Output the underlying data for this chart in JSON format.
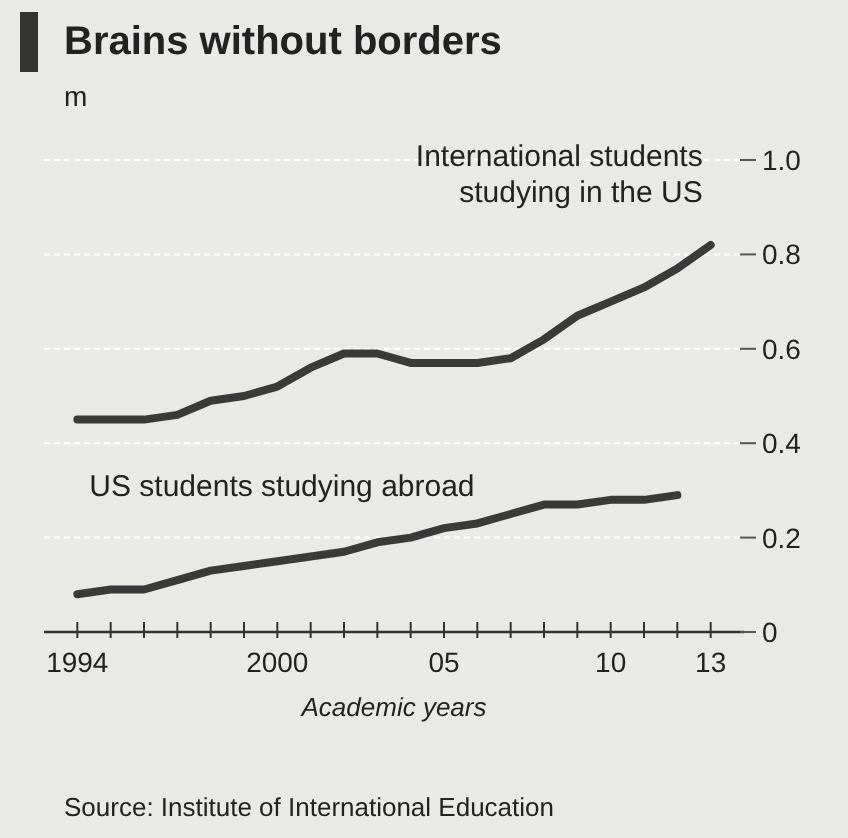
{
  "chart_data": {
    "type": "line",
    "title": "Brains without borders",
    "subtitle": "m",
    "xlabel": "Academic years",
    "annotations": [
      "Source: Institute of International Education"
    ],
    "marker": "none",
    "grid": "y",
    "xlim": [
      1993,
      2014
    ],
    "xticks": [
      {
        "value": 1994,
        "label": "1994"
      },
      {
        "value": 1995,
        "label": null
      },
      {
        "value": 1996,
        "label": null
      },
      {
        "value": 1997,
        "label": null
      },
      {
        "value": 1998,
        "label": null
      },
      {
        "value": 1999,
        "label": null
      },
      {
        "value": 2000,
        "label": "2000"
      },
      {
        "value": 2001,
        "label": null
      },
      {
        "value": 2002,
        "label": null
      },
      {
        "value": 2003,
        "label": null
      },
      {
        "value": 2004,
        "label": null
      },
      {
        "value": 2005,
        "label": "05"
      },
      {
        "value": 2006,
        "label": null
      },
      {
        "value": 2007,
        "label": null
      },
      {
        "value": 2008,
        "label": null
      },
      {
        "value": 2009,
        "label": null
      },
      {
        "value": 2010,
        "label": "10"
      },
      {
        "value": 2011,
        "label": null
      },
      {
        "value": 2012,
        "label": null
      },
      {
        "value": 2013,
        "label": "13"
      }
    ],
    "ylim": [
      0,
      1
    ],
    "yticks": [
      0,
      0.2,
      0.4,
      0.6,
      0.8,
      {
        "value": 1,
        "label": "1.0"
      }
    ],
    "series": [
      {
        "name": "International students studying in the US",
        "color": "#3a3a3a",
        "x": [
          1994,
          1995,
          1996,
          1997,
          1998,
          1999,
          2000,
          2001,
          2002,
          2003,
          2004,
          2005,
          2006,
          2007,
          2008,
          2009,
          2010,
          2011,
          2012,
          2013
        ],
        "values": [
          0.45,
          0.45,
          0.45,
          0.46,
          0.49,
          0.5,
          0.52,
          0.56,
          0.59,
          0.59,
          0.57,
          0.57,
          0.57,
          0.58,
          0.62,
          0.67,
          0.7,
          0.73,
          0.77,
          0.82
        ]
      },
      {
        "name": "US students studying abroad",
        "color": "#3a3a3a",
        "x": [
          1994,
          1995,
          1996,
          1997,
          1998,
          1999,
          2000,
          2001,
          2002,
          2003,
          2004,
          2005,
          2006,
          2007,
          2008,
          2009,
          2010,
          2011,
          2012
        ],
        "values": [
          0.08,
          0.09,
          0.09,
          0.11,
          0.13,
          0.14,
          0.15,
          0.16,
          0.17,
          0.19,
          0.2,
          0.22,
          0.23,
          0.25,
          0.27,
          0.27,
          0.28,
          0.28,
          0.29
        ]
      }
    ]
  }
}
